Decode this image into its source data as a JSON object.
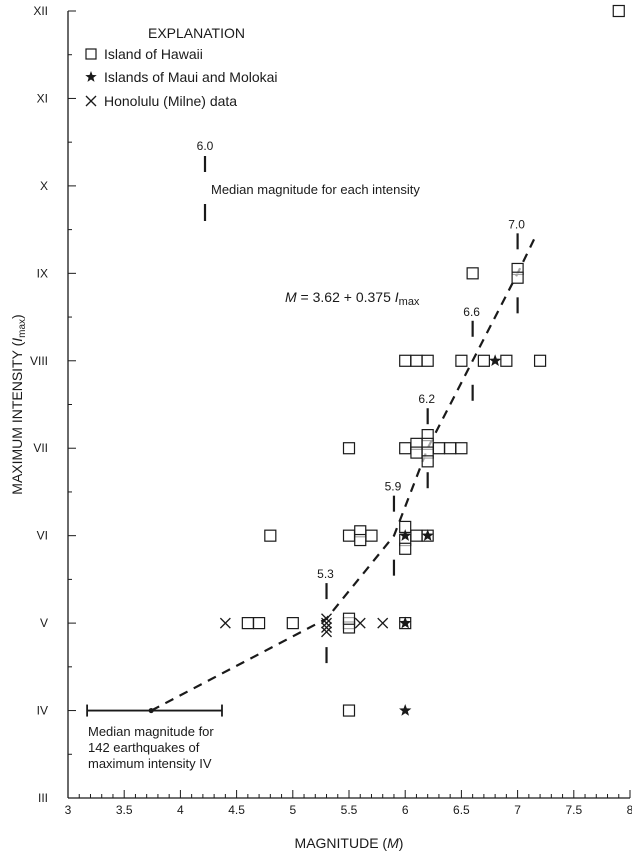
{
  "chart_data": {
    "type": "scatter",
    "xlabel": "MAGNITUDE (M)",
    "xlabel_prefix": "MAGNITUDE (",
    "xlabel_var": "M",
    "xlabel_suffix": ")",
    "ylabel": "MAXIMUM INTENSITY (Imax)",
    "ylabel_prefix": "MAXIMUM INTENSITY (",
    "ylabel_var": "I",
    "ylabel_sub": "max",
    "ylabel_suffix": ")",
    "xlim": [
      3,
      8
    ],
    "ylim": [
      3,
      12
    ],
    "x_ticks": [
      3,
      3.5,
      4,
      4.5,
      5,
      5.5,
      6,
      6.5,
      7,
      7.5,
      8
    ],
    "x_tick_labels": [
      "3",
      "3.5",
      "4",
      "4.5",
      "5",
      "5.5",
      "6",
      "6.5",
      "7",
      "7.5",
      "8"
    ],
    "y_ticks": [
      3,
      4,
      5,
      6,
      7,
      8,
      9,
      10,
      11,
      12
    ],
    "y_tick_labels": [
      "III",
      "IV",
      "V",
      "VI",
      "VII",
      "VIII",
      "IX",
      "X",
      "XI",
      "XII"
    ],
    "legend": {
      "title": "EXPLANATION",
      "entries": [
        "Island of Hawaii",
        "Islands of Maui and Molokai",
        "Honolulu (Milne) data"
      ]
    },
    "series": [
      {
        "name": "Island of Hawaii",
        "marker": "square",
        "points": [
          [
            5.5,
            4
          ],
          [
            4.6,
            5
          ],
          [
            4.7,
            5
          ],
          [
            5.0,
            5
          ],
          [
            5.5,
            5
          ],
          [
            5.5,
            4.95
          ],
          [
            5.5,
            5.05
          ],
          [
            6.0,
            5
          ],
          [
            4.8,
            6
          ],
          [
            5.5,
            6
          ],
          [
            5.6,
            6.05
          ],
          [
            5.6,
            5.95
          ],
          [
            5.7,
            6
          ],
          [
            6.0,
            6.1
          ],
          [
            6.0,
            5.95
          ],
          [
            6.0,
            5.85
          ],
          [
            6.1,
            6
          ],
          [
            6.2,
            6
          ],
          [
            5.5,
            7
          ],
          [
            6.0,
            7
          ],
          [
            6.1,
            7.05
          ],
          [
            6.1,
            6.95
          ],
          [
            6.2,
            7.15
          ],
          [
            6.2,
            7.05
          ],
          [
            6.2,
            6.95
          ],
          [
            6.2,
            6.85
          ],
          [
            6.3,
            7
          ],
          [
            6.4,
            7
          ],
          [
            6.5,
            7
          ],
          [
            6.0,
            8
          ],
          [
            6.1,
            8
          ],
          [
            6.2,
            8
          ],
          [
            6.5,
            8
          ],
          [
            6.7,
            8
          ],
          [
            6.9,
            8
          ],
          [
            7.2,
            8
          ],
          [
            6.6,
            9
          ],
          [
            7.0,
            9.05
          ],
          [
            7.0,
            8.95
          ],
          [
            7.9,
            12
          ]
        ]
      },
      {
        "name": "Islands of Maui and Molokai",
        "marker": "star",
        "points": [
          [
            6.0,
            4
          ],
          [
            6.0,
            5
          ],
          [
            6.0,
            6
          ],
          [
            6.2,
            6
          ],
          [
            6.8,
            8
          ]
        ]
      },
      {
        "name": "Honolulu (Milne) data",
        "marker": "x",
        "points": [
          [
            4.4,
            5
          ],
          [
            5.3,
            5.05
          ],
          [
            5.3,
            5
          ],
          [
            5.3,
            4.95
          ],
          [
            5.3,
            4.9
          ],
          [
            5.6,
            5
          ],
          [
            5.8,
            5
          ]
        ]
      }
    ],
    "fit_line": {
      "equation_lhs": "M",
      "equation_mid": " = 3.62 + 0.375 ",
      "equation_var": "I",
      "equation_sub": "max",
      "points": [
        [
          3.74,
          4
        ],
        [
          5.3,
          5.05
        ],
        [
          5.9,
          6
        ],
        [
          6.2,
          7
        ],
        [
          6.6,
          8
        ],
        [
          7.0,
          9
        ],
        [
          7.15,
          9.4
        ]
      ]
    },
    "medians": [
      {
        "intensity": 5,
        "label": "5.3",
        "value": 5.3
      },
      {
        "intensity": 6,
        "label": "5.9",
        "value": 5.9
      },
      {
        "intensity": 7,
        "label": "6.2",
        "value": 6.2
      },
      {
        "intensity": 8,
        "label": "6.6",
        "value": 6.6
      },
      {
        "intensity": 9,
        "label": "7.0",
        "value": 7.0
      }
    ],
    "median_key": {
      "label": "6.0",
      "text": "Median magnitude for each intensity"
    },
    "intensity_iv_median": {
      "value": 3.74,
      "range": [
        3.17,
        4.37
      ],
      "intensity": 4,
      "lines": [
        "Median magnitude for",
        "142 earthquakes of",
        "maximum intensity IV"
      ]
    }
  }
}
